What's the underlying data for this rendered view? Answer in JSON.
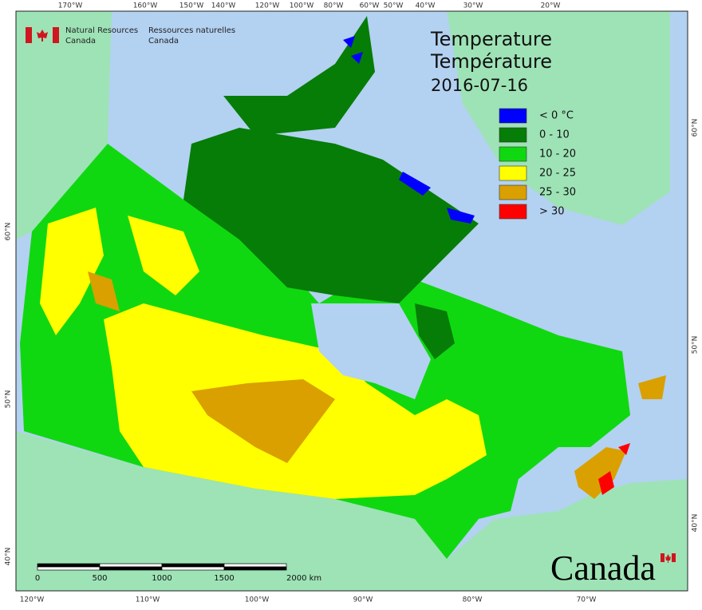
{
  "header": {
    "agency_en": [
      "Natural Resources",
      "Canada"
    ],
    "agency_fr": [
      "Ressources naturelles",
      "Canada"
    ],
    "title": [
      "Temperature",
      "Température",
      "2016-07-16"
    ],
    "wordmark": "Canada"
  },
  "legend": [
    {
      "label": "< 0 °C",
      "color": "#0000ff"
    },
    {
      "label": "0 - 10",
      "color": "#067d06"
    },
    {
      "label": "10 - 20",
      "color": "#10d810"
    },
    {
      "label": "20 - 25",
      "color": "#ffff00"
    },
    {
      "label": "25 - 30",
      "color": "#d9a000"
    },
    {
      "label": "> 30",
      "color": "#ff0000"
    }
  ],
  "graticule": {
    "top": [
      "170°W",
      "160°W",
      "150°W",
      "140°W",
      "120°W",
      "100°W",
      "80°W",
      "60°W",
      "50°W",
      "40°W",
      "30°W",
      "20°W"
    ],
    "bottom": [
      "120°W",
      "110°W",
      "100°W",
      "90°W",
      "80°W",
      "70°W"
    ],
    "left": [
      "60°N",
      "50°N",
      "40°N"
    ],
    "right": [
      "60°N",
      "50°N",
      "40°N"
    ]
  },
  "scale_bar": [
    "0",
    "500",
    "1000",
    "1500",
    "2000 km"
  ]
}
